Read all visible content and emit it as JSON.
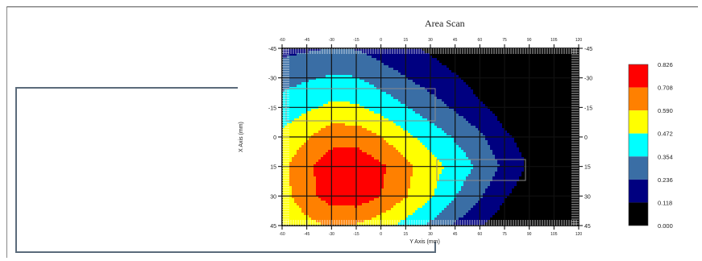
{
  "chart_data": {
    "type": "heatmap",
    "title": "Area Scan",
    "xlabel": "Y Axis (mm)",
    "ylabel": "X Axis (mm)",
    "x_tick_labels_top": [
      "-60",
      "-45",
      "-30",
      "-15",
      "0",
      "15",
      "30",
      "45",
      "60",
      "75",
      "90",
      "105",
      "120"
    ],
    "x_tick_labels_bottom": [
      "-60",
      "-45",
      "-30",
      "-15",
      "0",
      "15",
      "30",
      "45",
      "60",
      "75",
      "90",
      "105",
      "120"
    ],
    "y_ticks": [
      "-45",
      "-30",
      "-15",
      "0",
      "15",
      "30",
      "45"
    ],
    "grid": "on",
    "legend": {
      "placement": "right",
      "levels": [
        "0.826",
        "0.708",
        "0.590",
        "0.472",
        "0.354",
        "0.236",
        "0.118",
        "0.000"
      ],
      "colors": [
        "#ff0000",
        "#ff8000",
        "#ffff00",
        "#00ffff",
        "#3a6ea5",
        "#000080",
        "#000000"
      ]
    },
    "x": [
      -60,
      -45,
      -30,
      -15,
      0,
      15,
      30,
      45,
      60,
      75,
      90,
      105,
      120
    ],
    "y": [
      -45,
      -30,
      -15,
      0,
      15,
      30,
      45
    ],
    "values": [
      [
        0.2,
        0.22,
        0.24,
        0.23,
        0.18,
        0.14,
        0.1,
        0.05,
        0.02,
        0.01,
        0.0,
        0.0,
        0.0
      ],
      [
        0.31,
        0.34,
        0.37,
        0.36,
        0.3,
        0.24,
        0.18,
        0.13,
        0.06,
        0.03,
        0.01,
        0.0,
        0.0
      ],
      [
        0.4,
        0.45,
        0.5,
        0.49,
        0.43,
        0.36,
        0.29,
        0.22,
        0.14,
        0.06,
        0.03,
        0.01,
        0.0
      ],
      [
        0.5,
        0.58,
        0.66,
        0.66,
        0.59,
        0.5,
        0.42,
        0.34,
        0.26,
        0.14,
        0.07,
        0.02,
        0.0
      ],
      [
        0.56,
        0.68,
        0.78,
        0.8,
        0.73,
        0.62,
        0.52,
        0.43,
        0.33,
        0.21,
        0.1,
        0.03,
        0.0
      ],
      [
        0.54,
        0.67,
        0.76,
        0.78,
        0.71,
        0.6,
        0.49,
        0.36,
        0.25,
        0.13,
        0.05,
        0.01,
        0.0
      ],
      [
        0.48,
        0.55,
        0.6,
        0.58,
        0.52,
        0.43,
        0.33,
        0.22,
        0.13,
        0.05,
        0.02,
        0.0,
        0.0
      ]
    ]
  }
}
